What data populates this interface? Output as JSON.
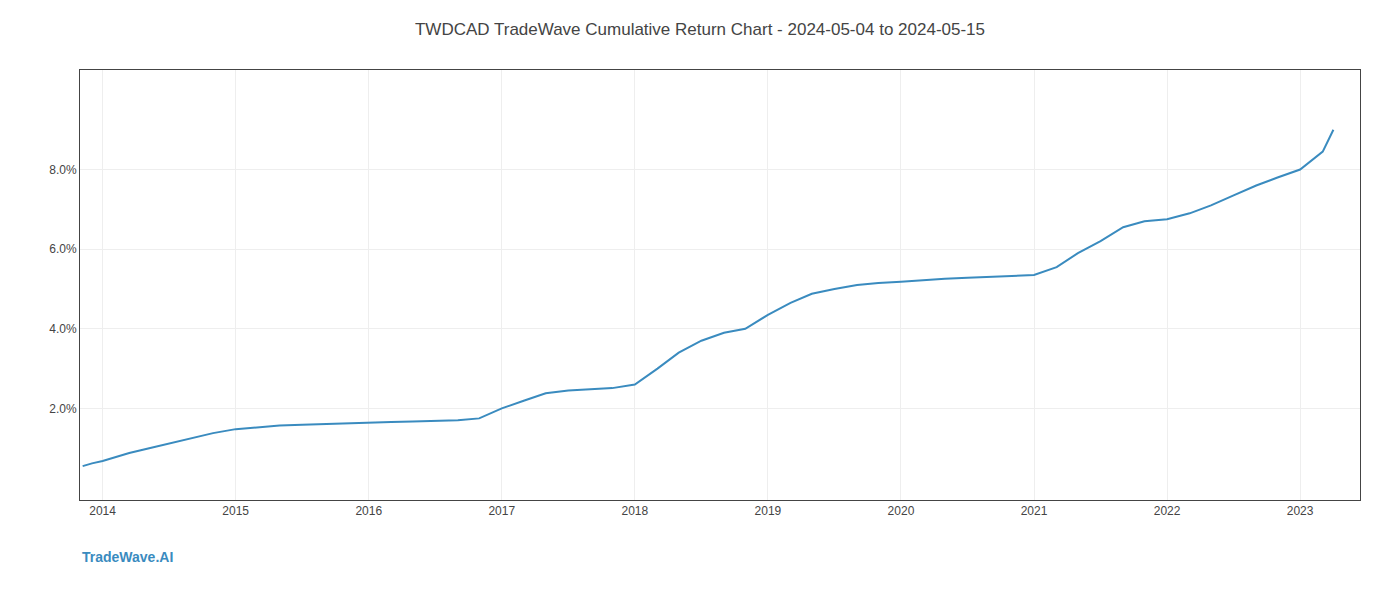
{
  "chart_data": {
    "type": "line",
    "title": "TWDCAD TradeWave Cumulative Return Chart - 2024-05-04 to 2024-05-15",
    "annotations": [
      "TradeWave.AI"
    ],
    "x": [
      2013.85,
      2013.92,
      2014.0,
      2014.1,
      2014.2,
      2014.35,
      2014.5,
      2014.65,
      2014.83,
      2015.0,
      2015.17,
      2015.33,
      2015.5,
      2015.67,
      2015.83,
      2016.0,
      2016.17,
      2016.33,
      2016.5,
      2016.67,
      2016.83,
      2017.0,
      2017.17,
      2017.33,
      2017.5,
      2017.67,
      2017.83,
      2018.0,
      2018.17,
      2018.33,
      2018.5,
      2018.67,
      2018.83,
      2019.0,
      2019.17,
      2019.33,
      2019.5,
      2019.67,
      2019.83,
      2020.0,
      2020.17,
      2020.33,
      2020.5,
      2020.67,
      2020.83,
      2021.0,
      2021.17,
      2021.33,
      2021.5,
      2021.67,
      2021.83,
      2022.0,
      2022.17,
      2022.33,
      2022.5,
      2022.67,
      2022.83,
      2023.0,
      2023.17,
      2023.25
    ],
    "values": [
      0.55,
      0.62,
      0.68,
      0.78,
      0.88,
      1.0,
      1.12,
      1.25,
      1.38,
      1.48,
      1.53,
      1.57,
      1.59,
      1.61,
      1.63,
      1.65,
      1.66,
      1.67,
      1.68,
      1.7,
      1.75,
      2.0,
      2.2,
      2.38,
      2.45,
      2.48,
      2.51,
      2.6,
      3.0,
      3.4,
      3.7,
      3.9,
      4.0,
      4.35,
      4.65,
      4.88,
      5.0,
      5.1,
      5.15,
      5.18,
      5.22,
      5.26,
      5.28,
      5.3,
      5.32,
      5.35,
      5.55,
      5.9,
      6.2,
      6.55,
      6.7,
      6.75,
      6.9,
      7.1,
      7.35,
      7.6,
      7.8,
      8.0,
      8.45,
      9.0
    ],
    "color": "#3a8bbf",
    "xlim": [
      2013.83,
      2023.45
    ],
    "xticks": [
      2014,
      2015,
      2016,
      2017,
      2018,
      2019,
      2020,
      2021,
      2022,
      2023
    ],
    "ylim": [
      -0.3,
      10.5
    ],
    "yticks": [
      {
        "value": 2.0,
        "label": "2.0%"
      },
      {
        "value": 4.0,
        "label": "4.0%"
      },
      {
        "value": 6.0,
        "label": "6.0%"
      },
      {
        "value": 8.0,
        "label": "8.0%"
      }
    ],
    "grid": true
  }
}
